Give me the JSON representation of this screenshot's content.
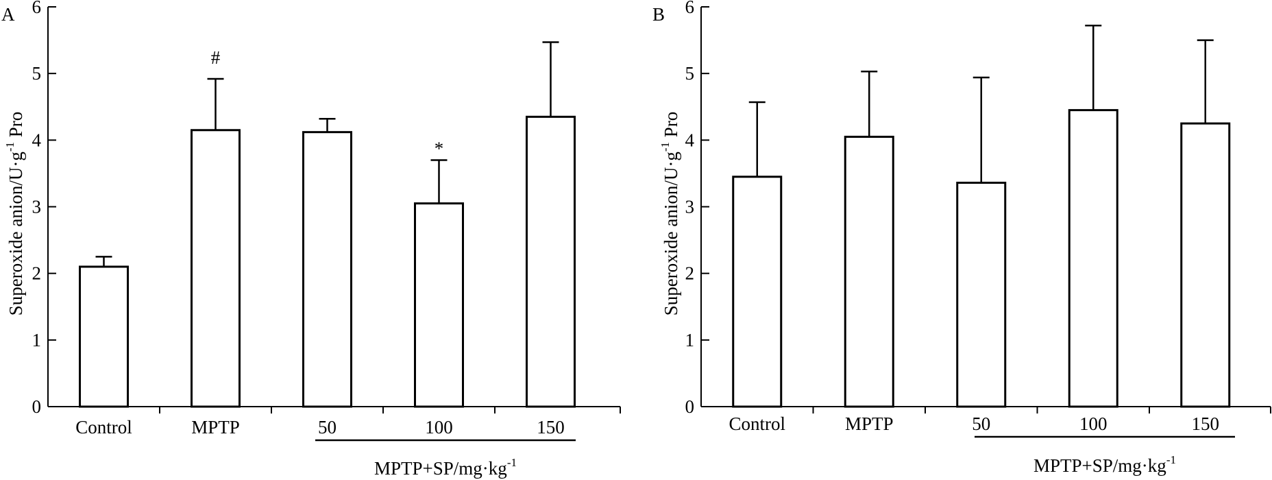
{
  "chart_data": [
    {
      "type": "bar",
      "panel_label": "A",
      "categories": [
        "Control",
        "MPTP",
        "50",
        "100",
        "150"
      ],
      "values": [
        2.1,
        4.15,
        4.12,
        3.05,
        4.35
      ],
      "errors": [
        0.15,
        0.77,
        0.2,
        0.65,
        1.12
      ],
      "annotations": [
        "",
        "#",
        "",
        "*",
        ""
      ],
      "ylabel_main": "Superoxide anion/U·g",
      "ylabel_sup": "-1",
      "ylabel_tail": " Pro",
      "ylim": [
        0,
        6
      ],
      "yticks": [
        "0",
        "1",
        "2",
        "3",
        "4",
        "5",
        "6"
      ],
      "group_label_main": "MPTP+SP/mg·kg",
      "group_label_sup": "-1",
      "bar_fill": "#ffffff",
      "stroke_color": "#000000"
    },
    {
      "type": "bar",
      "panel_label": "B",
      "categories": [
        "Control",
        "MPTP",
        "50",
        "100",
        "150"
      ],
      "values": [
        3.45,
        4.05,
        3.36,
        4.45,
        4.25
      ],
      "errors": [
        1.12,
        0.98,
        1.58,
        1.27,
        1.25
      ],
      "annotations": [
        "",
        "",
        "",
        "",
        ""
      ],
      "ylabel_main": "Superoxide anion/U·g",
      "ylabel_sup": "-1",
      "ylabel_tail": " Pro",
      "ylim": [
        0,
        6
      ],
      "yticks": [
        "0",
        "1",
        "2",
        "3",
        "4",
        "5",
        "6"
      ],
      "group_label_main": "MPTP+SP/mg·kg",
      "group_label_sup": "-1",
      "bar_fill": "#ffffff",
      "stroke_color": "#000000"
    }
  ]
}
